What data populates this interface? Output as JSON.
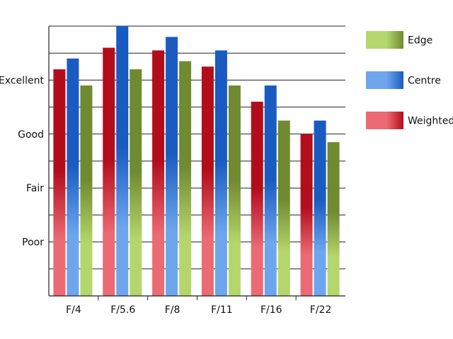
{
  "chart_data": {
    "type": "bar",
    "categories": [
      "F/4",
      "F/5.6",
      "F/8",
      "F/11",
      "F/16",
      "F/22"
    ],
    "y_tick_labels": [
      {
        "value": 2,
        "label": "Poor"
      },
      {
        "value": 4,
        "label": "Fair"
      },
      {
        "value": 6,
        "label": "Good"
      },
      {
        "value": 8,
        "label": "Excellent"
      }
    ],
    "ylim": [
      0,
      10
    ],
    "grid": true,
    "legend_position": "right",
    "series": [
      {
        "name": "Weighted",
        "values": [
          8.4,
          9.2,
          9.1,
          8.5,
          7.2,
          6.0
        ],
        "color_dark": "#b30d1c",
        "color_light": "#ec6a74"
      },
      {
        "name": "Centre",
        "values": [
          8.8,
          10.0,
          9.6,
          9.1,
          7.8,
          6.5
        ],
        "color_dark": "#1a5bc1",
        "color_light": "#6ea6ee"
      },
      {
        "name": "Edge",
        "values": [
          7.8,
          8.4,
          8.7,
          7.8,
          6.5,
          5.7
        ],
        "color_dark": "#6f8a30",
        "color_light": "#b5d66c"
      }
    ],
    "legend_order": [
      "Edge",
      "Centre",
      "Weighted"
    ]
  }
}
